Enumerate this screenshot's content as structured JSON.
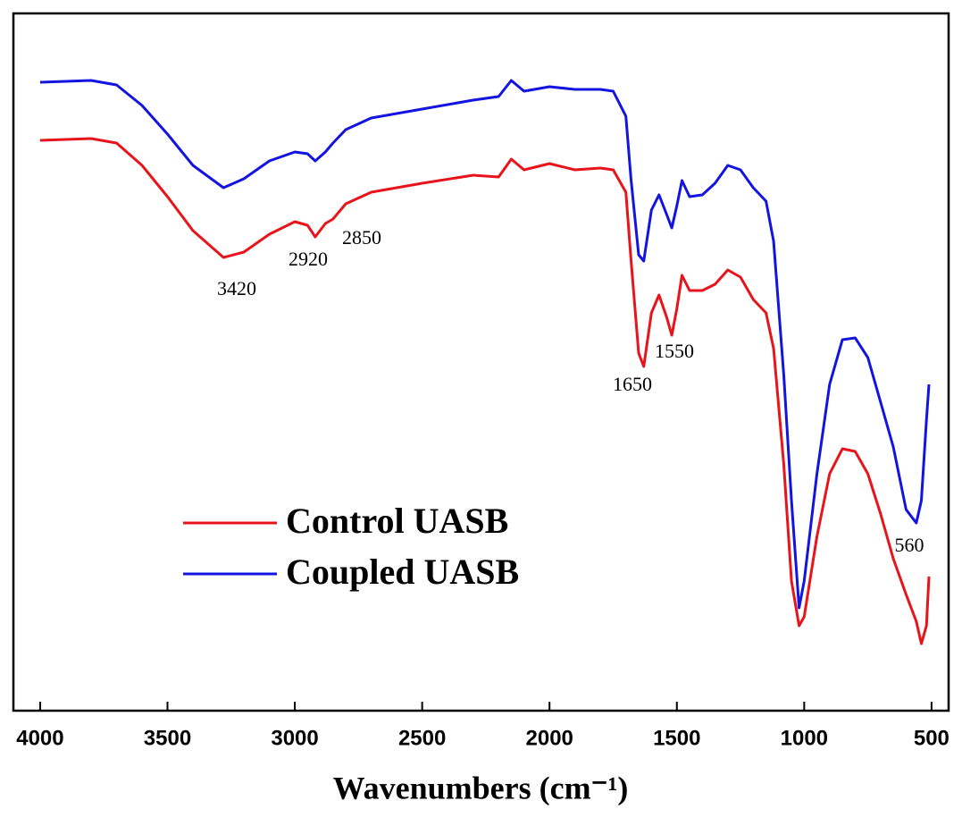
{
  "chart_data": {
    "type": "line",
    "xlabel": "Wavenumbers (cm⁻¹)",
    "x": [
      4000,
      3800,
      3700,
      3600,
      3500,
      3400,
      3280,
      3200,
      3100,
      3000,
      2950,
      2920,
      2880,
      2850,
      2800,
      2700,
      2500,
      2300,
      2200,
      2150,
      2100,
      2000,
      1900,
      1800,
      1750,
      1700,
      1680,
      1650,
      1630,
      1600,
      1570,
      1540,
      1520,
      1500,
      1480,
      1450,
      1400,
      1350,
      1300,
      1250,
      1200,
      1150,
      1120,
      1080,
      1050,
      1020,
      1000,
      950,
      900,
      850,
      800,
      750,
      700,
      650,
      600,
      560,
      540,
      520,
      510
    ],
    "series": [
      {
        "name": "Control UASB",
        "color": "#e8141b",
        "values": [
          638,
          640,
          635,
          610,
          575,
          537,
          507,
          513,
          533,
          547,
          543,
          530,
          545,
          550,
          567,
          580,
          590,
          599,
          597,
          617,
          605,
          612,
          605,
          607,
          605,
          580,
          505,
          400,
          385,
          445,
          465,
          440,
          420,
          450,
          487,
          470,
          470,
          477,
          493,
          485,
          460,
          445,
          405,
          275,
          145,
          95,
          105,
          195,
          265,
          293,
          290,
          265,
          220,
          170,
          130,
          100,
          75,
          95,
          150
        ]
      },
      {
        "name": "Coupled UASB",
        "color": "#1414e0",
        "values": [
          703,
          705,
          700,
          677,
          645,
          610,
          585,
          595,
          615,
          625,
          623,
          615,
          625,
          635,
          650,
          663,
          673,
          683,
          687,
          705,
          693,
          698,
          695,
          695,
          693,
          665,
          595,
          510,
          503,
          560,
          577,
          555,
          540,
          565,
          593,
          575,
          577,
          590,
          610,
          605,
          585,
          570,
          525,
          375,
          235,
          115,
          145,
          265,
          365,
          415,
          417,
          395,
          345,
          295,
          225,
          210,
          235,
          325,
          365
        ]
      }
    ],
    "xlim": [
      4105,
      433
    ],
    "ylim": [
      0,
      780
    ],
    "xticks": [
      4000,
      3500,
      3000,
      2500,
      2000,
      1500,
      1000,
      500
    ],
    "annotations": [
      "3420",
      "2920",
      "2850",
      "1650",
      "1550",
      "560"
    ],
    "legend": "lower left"
  }
}
